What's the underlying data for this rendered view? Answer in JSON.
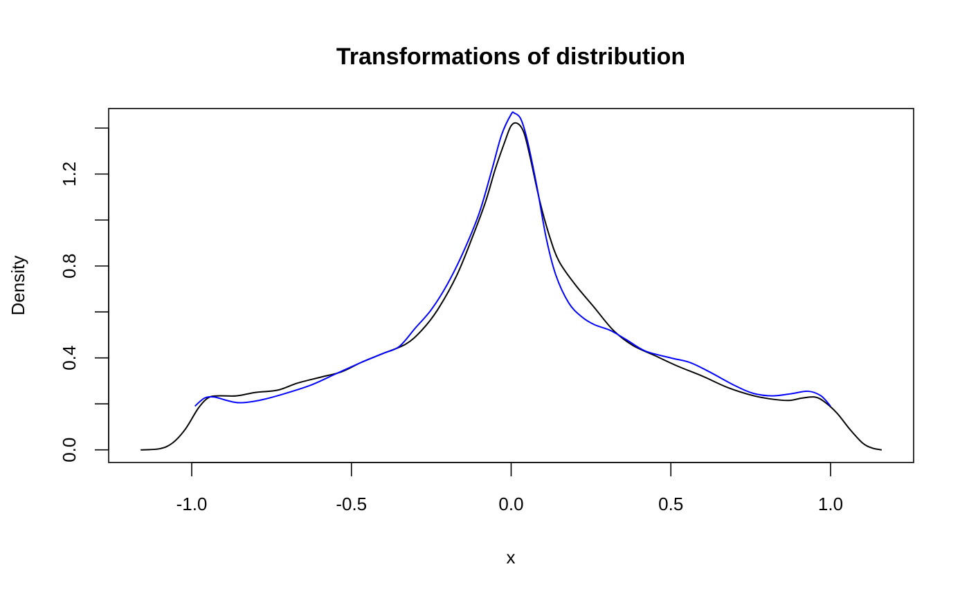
{
  "chart_data": {
    "type": "line",
    "title": "Transformations of distribution",
    "xlabel": "x",
    "ylabel": "Density",
    "xlim": [
      -1.26,
      1.26
    ],
    "ylim": [
      -0.055,
      1.485
    ],
    "grid": false,
    "x_ticks": [
      -1.0,
      -0.5,
      0.0,
      0.5,
      1.0
    ],
    "x_tick_labels": [
      "-1.0",
      "-0.5",
      "0.0",
      "0.5",
      "1.0"
    ],
    "y_ticks": [
      0.0,
      0.2,
      0.4,
      0.6,
      0.8,
      1.0,
      1.2,
      1.4
    ],
    "y_tick_labels": [
      "0.0",
      "",
      "0.4",
      "",
      "0.8",
      "",
      "1.2",
      ""
    ],
    "series": [
      {
        "color": "#000000",
        "points": [
          [
            -1.16,
            0.0
          ],
          [
            -1.1,
            0.005
          ],
          [
            -1.06,
            0.03
          ],
          [
            -1.02,
            0.09
          ],
          [
            -0.98,
            0.18
          ],
          [
            -0.95,
            0.225
          ],
          [
            -0.92,
            0.235
          ],
          [
            -0.86,
            0.235
          ],
          [
            -0.8,
            0.25
          ],
          [
            -0.73,
            0.26
          ],
          [
            -0.67,
            0.29
          ],
          [
            -0.6,
            0.315
          ],
          [
            -0.53,
            0.34
          ],
          [
            -0.47,
            0.38
          ],
          [
            -0.4,
            0.42
          ],
          [
            -0.33,
            0.46
          ],
          [
            -0.28,
            0.52
          ],
          [
            -0.23,
            0.61
          ],
          [
            -0.17,
            0.76
          ],
          [
            -0.12,
            0.93
          ],
          [
            -0.08,
            1.08
          ],
          [
            -0.05,
            1.22
          ],
          [
            -0.02,
            1.34
          ],
          [
            0.0,
            1.41
          ],
          [
            0.02,
            1.42
          ],
          [
            0.04,
            1.38
          ],
          [
            0.06,
            1.27
          ],
          [
            0.09,
            1.08
          ],
          [
            0.12,
            0.93
          ],
          [
            0.15,
            0.82
          ],
          [
            0.2,
            0.72
          ],
          [
            0.26,
            0.62
          ],
          [
            0.32,
            0.52
          ],
          [
            0.38,
            0.455
          ],
          [
            0.45,
            0.41
          ],
          [
            0.52,
            0.365
          ],
          [
            0.6,
            0.32
          ],
          [
            0.68,
            0.27
          ],
          [
            0.76,
            0.235
          ],
          [
            0.82,
            0.22
          ],
          [
            0.87,
            0.215
          ],
          [
            0.91,
            0.225
          ],
          [
            0.95,
            0.23
          ],
          [
            0.98,
            0.21
          ],
          [
            1.02,
            0.16
          ],
          [
            1.06,
            0.09
          ],
          [
            1.1,
            0.03
          ],
          [
            1.13,
            0.008
          ],
          [
            1.16,
            0.0
          ]
        ]
      },
      {
        "color": "#0000ff",
        "points": [
          [
            -0.99,
            0.19
          ],
          [
            -0.96,
            0.225
          ],
          [
            -0.93,
            0.23
          ],
          [
            -0.89,
            0.215
          ],
          [
            -0.85,
            0.205
          ],
          [
            -0.79,
            0.215
          ],
          [
            -0.72,
            0.24
          ],
          [
            -0.63,
            0.28
          ],
          [
            -0.55,
            0.33
          ],
          [
            -0.47,
            0.38
          ],
          [
            -0.4,
            0.42
          ],
          [
            -0.35,
            0.45
          ],
          [
            -0.3,
            0.53
          ],
          [
            -0.25,
            0.61
          ],
          [
            -0.2,
            0.72
          ],
          [
            -0.15,
            0.86
          ],
          [
            -0.1,
            1.03
          ],
          [
            -0.06,
            1.22
          ],
          [
            -0.03,
            1.37
          ],
          [
            0.0,
            1.46
          ],
          [
            0.01,
            1.465
          ],
          [
            0.03,
            1.44
          ],
          [
            0.05,
            1.35
          ],
          [
            0.08,
            1.15
          ],
          [
            0.11,
            0.92
          ],
          [
            0.14,
            0.76
          ],
          [
            0.18,
            0.64
          ],
          [
            0.22,
            0.58
          ],
          [
            0.26,
            0.545
          ],
          [
            0.31,
            0.52
          ],
          [
            0.36,
            0.48
          ],
          [
            0.42,
            0.43
          ],
          [
            0.5,
            0.4
          ],
          [
            0.56,
            0.38
          ],
          [
            0.62,
            0.34
          ],
          [
            0.7,
            0.28
          ],
          [
            0.76,
            0.245
          ],
          [
            0.82,
            0.235
          ],
          [
            0.88,
            0.245
          ],
          [
            0.93,
            0.255
          ],
          [
            0.97,
            0.235
          ],
          [
            1.0,
            0.19
          ]
        ]
      }
    ]
  }
}
